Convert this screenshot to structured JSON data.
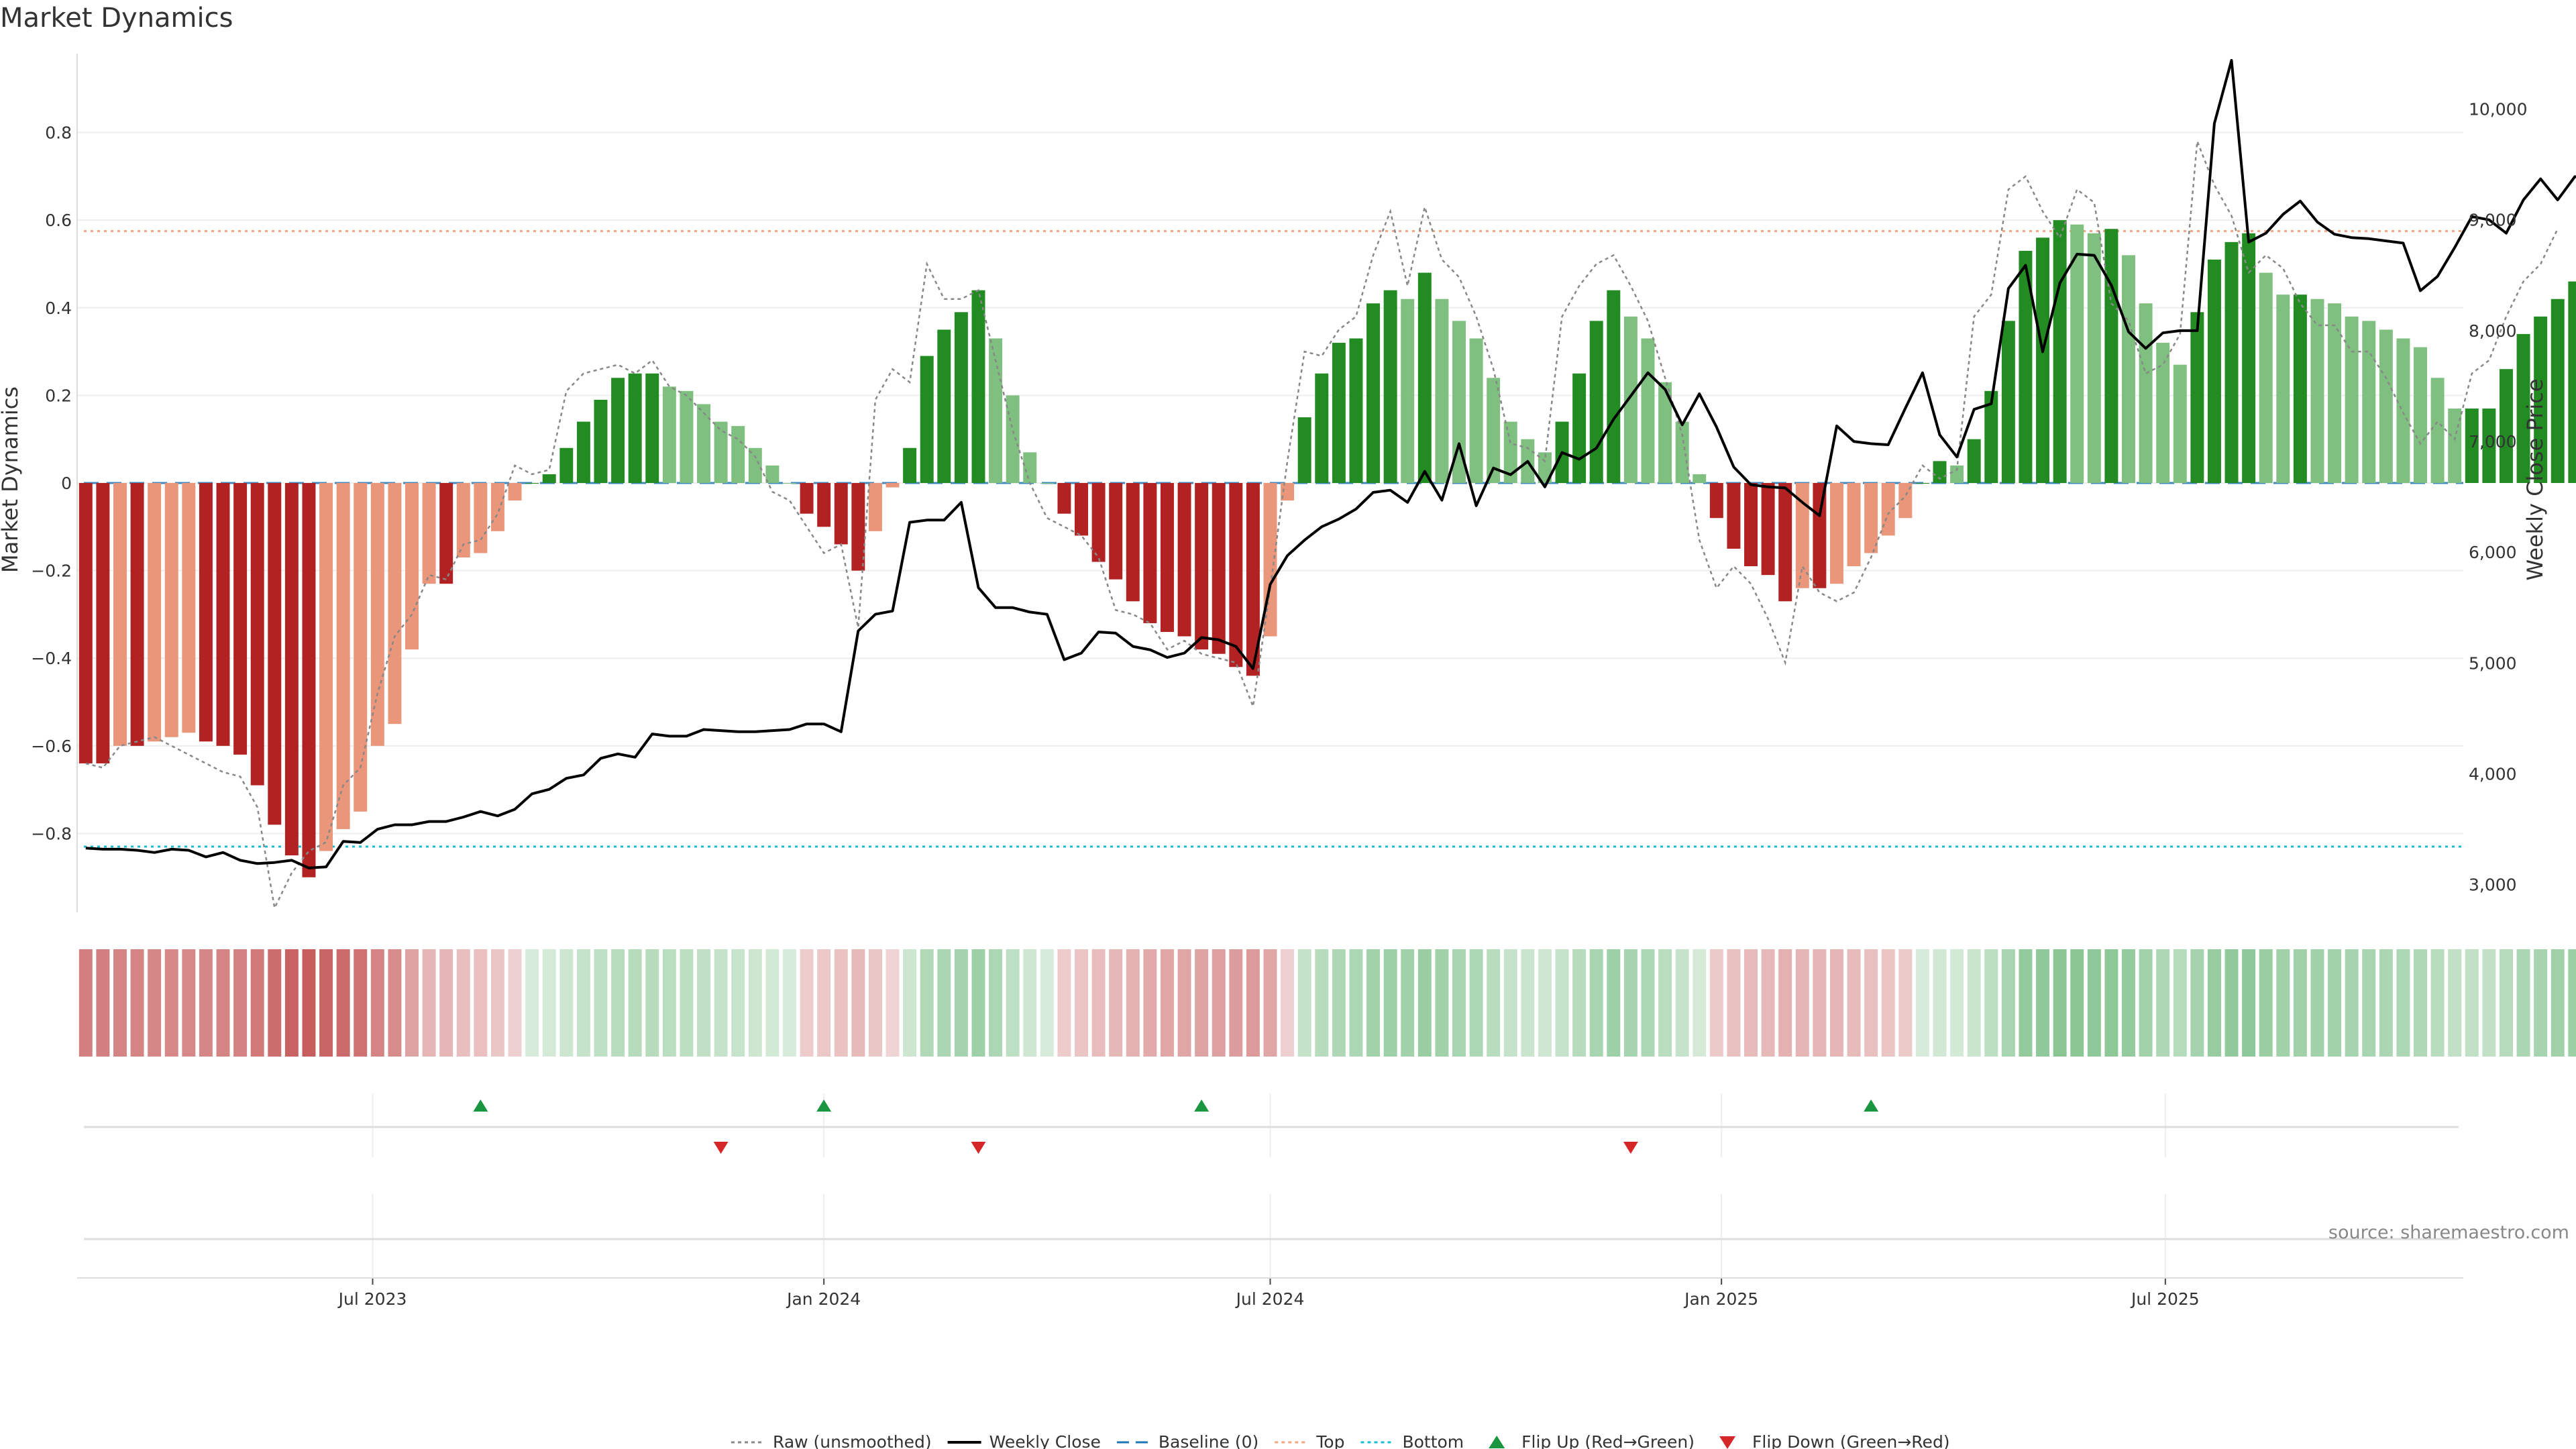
{
  "chart_data": {
    "type": "bar",
    "title": "Market Dynamics",
    "ylabel": "Market Dynamics",
    "y2label": "Weekly Close Price",
    "ylim": [
      -0.98,
      0.98
    ],
    "y2lim": [
      2750,
      10500
    ],
    "yticks": [
      -0.8,
      -0.6,
      -0.4,
      -0.2,
      0,
      0.2,
      0.4,
      0.6,
      0.8
    ],
    "ytick_labels": [
      "−0.8",
      "−0.6",
      "−0.4",
      "−0.2",
      "0",
      "0.2",
      "0.4",
      "0.6",
      "0.8"
    ],
    "y2ticks": [
      3000,
      4000,
      5000,
      6000,
      7000,
      8000,
      9000,
      10000
    ],
    "y2tick_labels": [
      "3,000",
      "4,000",
      "5,000",
      "6,000",
      "7,000",
      "8,000",
      "9,000",
      "10,000"
    ],
    "x_start": "2023-03-06",
    "x_end": "2025-10-27",
    "xticks": [
      "Jul 2023",
      "Jan 2024",
      "Jul 2024",
      "Jan 2025",
      "Jul 2025"
    ],
    "top_level": 0.575,
    "bottom_level": -0.83,
    "baseline": 0,
    "grid": true,
    "legend_position": "bottom-center",
    "values": [
      -0.64,
      -0.64,
      -0.6,
      -0.6,
      -0.59,
      -0.58,
      -0.57,
      -0.59,
      -0.6,
      -0.62,
      -0.69,
      -0.78,
      -0.85,
      -0.9,
      -0.84,
      -0.79,
      -0.75,
      -0.6,
      -0.55,
      -0.38,
      -0.23,
      -0.23,
      -0.17,
      -0.16,
      -0.11,
      -0.04,
      0.0,
      0.02,
      0.08,
      0.14,
      0.19,
      0.24,
      0.25,
      0.25,
      0.22,
      0.21,
      0.18,
      0.14,
      0.13,
      0.08,
      0.04,
      0.0,
      -0.07,
      -0.1,
      -0.14,
      -0.2,
      -0.11,
      -0.01,
      0.08,
      0.29,
      0.35,
      0.39,
      0.44,
      0.33,
      0.2,
      0.07,
      0.0,
      -0.07,
      -0.12,
      -0.18,
      -0.22,
      -0.27,
      -0.32,
      -0.34,
      -0.35,
      -0.38,
      -0.39,
      -0.42,
      -0.44,
      -0.35,
      -0.04,
      0.15,
      0.25,
      0.32,
      0.33,
      0.41,
      0.44,
      0.42,
      0.48,
      0.42,
      0.37,
      0.33,
      0.24,
      0.14,
      0.1,
      0.07,
      0.14,
      0.25,
      0.37,
      0.44,
      0.38,
      0.33,
      0.23,
      0.14,
      0.02,
      -0.08,
      -0.15,
      -0.19,
      -0.21,
      -0.27,
      -0.24,
      -0.24,
      -0.23,
      -0.19,
      -0.16,
      -0.12,
      -0.08,
      0.0,
      0.05,
      0.04,
      0.1,
      0.21,
      0.37,
      0.53,
      0.56,
      0.6,
      0.59,
      0.57,
      0.58,
      0.52,
      0.41,
      0.32,
      0.27,
      0.39,
      0.51,
      0.55,
      0.57,
      0.48,
      0.43,
      0.43,
      0.42,
      0.41,
      0.38,
      0.37,
      0.35,
      0.33,
      0.31,
      0.24,
      0.17,
      0.17,
      0.17,
      0.26,
      0.34,
      0.38,
      0.42,
      0.46
    ],
    "series": [
      {
        "name": "Raw (unsmoothed)",
        "values": [
          -0.64,
          -0.65,
          -0.6,
          -0.59,
          -0.58,
          -0.6,
          -0.62,
          -0.64,
          -0.66,
          -0.67,
          -0.74,
          -0.97,
          -0.89,
          -0.84,
          -0.82,
          -0.69,
          -0.65,
          -0.48,
          -0.35,
          -0.3,
          -0.21,
          -0.22,
          -0.14,
          -0.13,
          -0.07,
          0.04,
          0.02,
          0.03,
          0.21,
          0.25,
          0.26,
          0.27,
          0.25,
          0.28,
          0.22,
          0.2,
          0.16,
          0.12,
          0.1,
          0.06,
          -0.02,
          -0.04,
          -0.1,
          -0.16,
          -0.14,
          -0.33,
          0.19,
          0.26,
          0.23,
          0.5,
          0.42,
          0.42,
          0.44,
          0.28,
          0.12,
          0.0,
          -0.08,
          -0.1,
          -0.12,
          -0.17,
          -0.29,
          -0.3,
          -0.32,
          -0.38,
          -0.36,
          -0.39,
          -0.4,
          -0.41,
          -0.51,
          -0.24,
          0.05,
          0.3,
          0.29,
          0.35,
          0.38,
          0.52,
          0.62,
          0.45,
          0.63,
          0.51,
          0.47,
          0.38,
          0.26,
          0.09,
          0.08,
          0.05,
          0.38,
          0.45,
          0.5,
          0.52,
          0.45,
          0.37,
          0.24,
          0.11,
          -0.13,
          -0.24,
          -0.19,
          -0.23,
          -0.31,
          -0.41,
          -0.19,
          -0.25,
          -0.27,
          -0.25,
          -0.17,
          -0.07,
          -0.03,
          0.04,
          0.01,
          0.03,
          0.38,
          0.43,
          0.67,
          0.7,
          0.62,
          0.56,
          0.67,
          0.64,
          0.41,
          0.37,
          0.25,
          0.27,
          0.34,
          0.78,
          0.68,
          0.61,
          0.48,
          0.52,
          0.49,
          0.41,
          0.36,
          0.36,
          0.3,
          0.3,
          0.24,
          0.16,
          0.09,
          0.14,
          0.1,
          0.25,
          0.28,
          0.38,
          0.46,
          0.5,
          0.58
        ]
      },
      {
        "name": "Weekly Close",
        "axis": "right",
        "values": [
          3330,
          3320,
          3320,
          3310,
          3290,
          3320,
          3310,
          3250,
          3290,
          3220,
          3190,
          3200,
          3220,
          3150,
          3160,
          3390,
          3380,
          3500,
          3540,
          3540,
          3570,
          3570,
          3610,
          3660,
          3620,
          3680,
          3820,
          3860,
          3960,
          3990,
          4140,
          4180,
          4150,
          4360,
          4340,
          4340,
          4400,
          4390,
          4380,
          4380,
          4390,
          4400,
          4450,
          4450,
          4380,
          5290,
          5440,
          5470,
          6270,
          6290,
          6290,
          6450,
          5680,
          5500,
          5500,
          5460,
          5440,
          5030,
          5090,
          5280,
          5270,
          5150,
          5120,
          5050,
          5090,
          5230,
          5210,
          5150,
          4950,
          5710,
          5970,
          6110,
          6230,
          6300,
          6390,
          6540,
          6560,
          6450,
          6730,
          6470,
          6980,
          6420,
          6760,
          6700,
          6820,
          6590,
          6900,
          6840,
          6940,
          7200,
          7410,
          7620,
          7470,
          7150,
          7430,
          7130,
          6770,
          6610,
          6590,
          6580,
          6450,
          6330,
          7140,
          7000,
          6980,
          6970,
          7300,
          7620,
          7060,
          6860,
          7290,
          7340,
          8380,
          8590,
          7810,
          8430,
          8690,
          8680,
          8410,
          7990,
          7840,
          7980,
          8000,
          8000,
          9870,
          10440,
          8800,
          8880,
          9050,
          9170,
          8980,
          8870,
          8840,
          8830,
          8810,
          8790,
          8360,
          8490,
          8750,
          9030,
          9000,
          8880,
          9180,
          9370,
          9180,
          9390,
          9370,
          9610
        ]
      }
    ],
    "flips_up": [
      "2023-08-14",
      "2024-01-01",
      "2024-06-03",
      "2025-03-03"
    ],
    "flips_down": [
      "2023-11-20",
      "2024-03-04",
      "2024-11-25"
    ],
    "legend": [
      {
        "label": "Raw (unsmoothed)",
        "style": "dotted",
        "color": "#888888"
      },
      {
        "label": "Weekly Close",
        "style": "solid",
        "color": "#000000"
      },
      {
        "label": "Baseline (0)",
        "style": "dashed",
        "color": "#1f77b4"
      },
      {
        "label": "Top",
        "style": "dotted",
        "color": "#f4a582"
      },
      {
        "label": "Bottom",
        "style": "dotted",
        "color": "#17becf"
      },
      {
        "label": "Flip Up (Red→Green)",
        "style": "triangle-up",
        "color": "#1a9641"
      },
      {
        "label": "Flip Down (Green→Red)",
        "style": "triangle-down",
        "color": "#d62728"
      }
    ],
    "source": "source: sharemaestro.com"
  },
  "colors": {
    "strong_green": "#228b22",
    "weak_green": "#7fbf7f",
    "strong_red": "#b22222",
    "weak_red": "#e9967a",
    "flip_up": "#1a9641",
    "flip_down": "#d62728",
    "baseline": "#1f77b4",
    "top": "#f4a582",
    "bottom": "#17becf"
  }
}
